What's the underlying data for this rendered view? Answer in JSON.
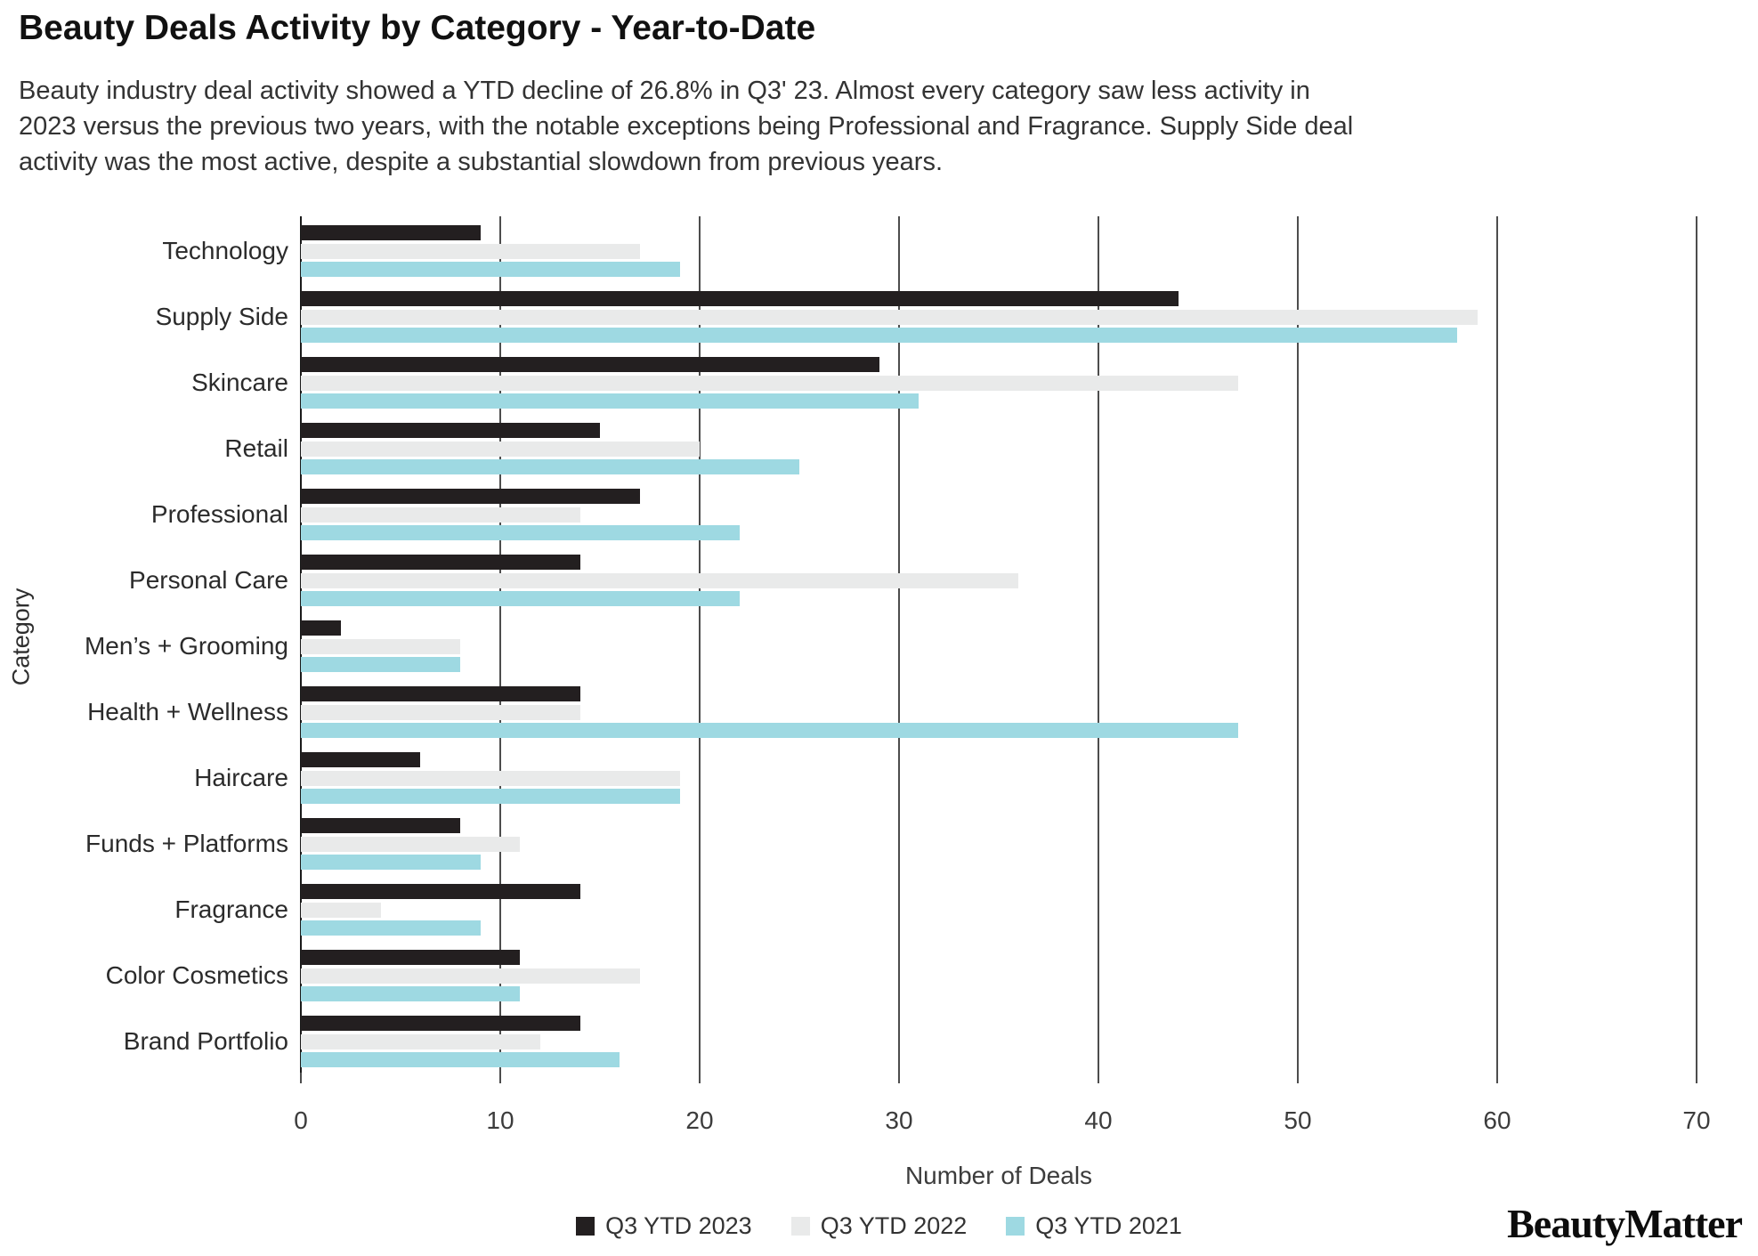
{
  "header": {
    "title": "Beauty Deals Activity by Category - Year-to-Date",
    "subtitle": "Beauty industry deal activity showed a YTD decline of 26.8% in Q3' 23. Almost every category saw less activity in 2023 versus the previous two years, with the notable exceptions being Professional and Fragrance. Supply Side deal activity was the most active, despite a substantial slowdown from previous years."
  },
  "chart_data": {
    "type": "bar",
    "orientation": "horizontal",
    "title": "Beauty Deals Activity by Category - Year-to-Date",
    "xlabel": "Number of Deals",
    "ylabel": "Category",
    "xlim": [
      0,
      70
    ],
    "xticks": [
      0,
      10,
      20,
      30,
      40,
      50,
      60,
      70
    ],
    "grid": true,
    "legend_position": "bottom",
    "categories": [
      "Technology",
      "Supply Side",
      "Skincare",
      "Retail",
      "Professional",
      "Personal Care",
      "Men’s + Grooming",
      "Health + Wellness",
      "Haircare",
      "Funds + Platforms",
      "Fragrance",
      "Color Cosmetics",
      "Brand Portfolio"
    ],
    "series": [
      {
        "name": "Q3 YTD 2023",
        "color": "#231f20",
        "values": [
          9,
          44,
          29,
          15,
          17,
          14,
          2,
          14,
          6,
          8,
          14,
          11,
          14
        ]
      },
      {
        "name": "Q3 YTD 2022",
        "color": "#e9eaea",
        "values": [
          17,
          59,
          47,
          20,
          14,
          36,
          8,
          14,
          19,
          11,
          4,
          17,
          12
        ]
      },
      {
        "name": "Q3 YTD 2021",
        "color": "#9ed9e2",
        "values": [
          19,
          58,
          31,
          25,
          22,
          22,
          8,
          47,
          19,
          9,
          9,
          11,
          16
        ]
      }
    ]
  },
  "branding": {
    "logo_text": "BeautyMatter"
  },
  "colors": {
    "series_2023": "#231f20",
    "series_2022": "#e9eaea",
    "series_2021": "#9ed9e2",
    "gridline": "#4d4d4d",
    "text": "#333333"
  }
}
